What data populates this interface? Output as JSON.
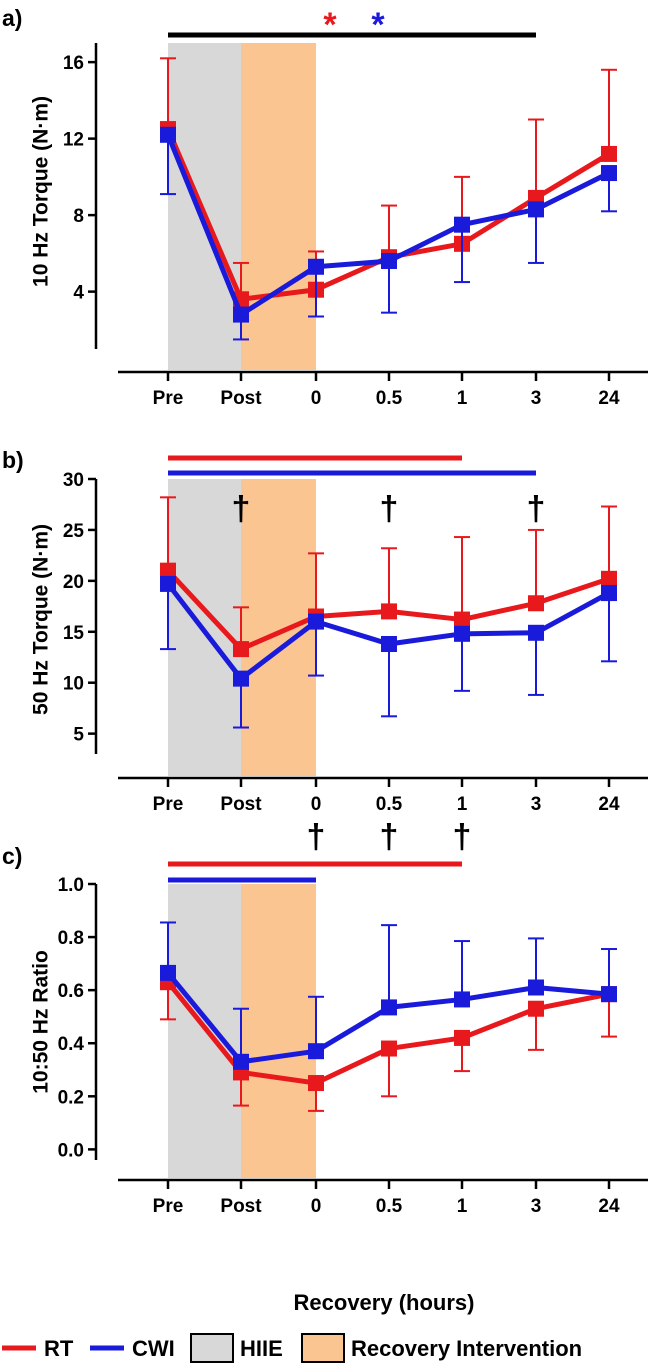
{
  "colors": {
    "rt": "#e8191c",
    "cwi": "#1a1adb",
    "hiie_shade": "#d8d8d8",
    "recovery_shade": "#fbc591",
    "black": "#000000"
  },
  "x_axis": {
    "categories": [
      "Pre",
      "Post",
      "0",
      "0.5",
      "1",
      "3",
      "24"
    ],
    "xlabel": "Recovery (hours)"
  },
  "legend": {
    "rt": "RT",
    "cwi": "CWI",
    "hiie": "HIIE",
    "recovery": "Recovery Intervention"
  },
  "chart_data": [
    {
      "panel": "a)",
      "type": "line",
      "ylabel": "10 Hz Torque (N·m)",
      "ylim": [
        1,
        17
      ],
      "yticks": [
        4,
        8,
        12,
        16
      ],
      "ytick_labels": [
        "4",
        "8",
        "12",
        "16"
      ],
      "shaded_regions": [
        {
          "name": "HIIE",
          "from": "Pre",
          "to": "Post"
        },
        {
          "name": "Recovery Intervention",
          "from": "Post",
          "to": "0"
        }
      ],
      "significance_bars": [
        {
          "color": "black",
          "from": "Pre",
          "to": "3"
        }
      ],
      "asterisks": [
        {
          "text": "*",
          "series": "RT"
        },
        {
          "text": "*",
          "series": "CWI"
        }
      ],
      "daggers": [],
      "series": [
        {
          "name": "RT",
          "values": [
            12.5,
            3.6,
            4.1,
            5.8,
            6.5,
            8.9,
            11.2
          ],
          "err_up": [
            3.7,
            1.9,
            2.0,
            2.7,
            3.5,
            4.1,
            4.4
          ]
        },
        {
          "name": "CWI",
          "values": [
            12.2,
            2.8,
            5.3,
            5.6,
            7.5,
            8.3,
            10.2
          ],
          "err_down": [
            3.1,
            1.3,
            2.6,
            2.7,
            3.0,
            2.8,
            2.0
          ]
        }
      ]
    },
    {
      "panel": "b)",
      "type": "line",
      "ylabel": "50 Hz Torque (N·m)",
      "ylim": [
        3,
        30
      ],
      "yticks": [
        5,
        10,
        15,
        20,
        25,
        30
      ],
      "ytick_labels": [
        "5",
        "10",
        "15",
        "20",
        "25",
        "30"
      ],
      "shaded_regions": [
        {
          "name": "HIIE",
          "from": "Pre",
          "to": "Post"
        },
        {
          "name": "Recovery Intervention",
          "from": "Post",
          "to": "0"
        }
      ],
      "significance_bars": [
        {
          "color": "RT",
          "from": "Pre",
          "to": "1"
        },
        {
          "color": "CWI",
          "from": "Pre",
          "to": "3"
        }
      ],
      "asterisks": [],
      "daggers": [
        {
          "text": "†",
          "at": "Post"
        },
        {
          "text": "†",
          "at": "0.5"
        },
        {
          "text": "†",
          "at": "3"
        }
      ],
      "series": [
        {
          "name": "RT",
          "values": [
            21.0,
            13.3,
            16.5,
            17.0,
            16.2,
            17.8,
            20.2
          ],
          "err_up": [
            7.2,
            4.1,
            6.2,
            6.2,
            8.1,
            7.2,
            7.1
          ]
        },
        {
          "name": "CWI",
          "values": [
            19.7,
            10.4,
            16.0,
            13.8,
            14.8,
            14.9,
            18.8
          ],
          "err_down": [
            6.4,
            4.8,
            5.3,
            7.1,
            5.6,
            6.1,
            6.7
          ]
        }
      ]
    },
    {
      "panel": "c)",
      "type": "line",
      "ylabel": "10:50 Hz Ratio",
      "ylim": [
        -0.04,
        1.0
      ],
      "yticks": [
        0.0,
        0.2,
        0.4,
        0.6,
        0.8,
        1.0
      ],
      "ytick_labels": [
        "0.0",
        "0.2",
        "0.4",
        "0.6",
        "0.8",
        "1.0"
      ],
      "shaded_regions": [
        {
          "name": "HIIE",
          "from": "Pre",
          "to": "Post"
        },
        {
          "name": "Recovery Intervention",
          "from": "Post",
          "to": "0"
        }
      ],
      "significance_bars": [
        {
          "color": "RT",
          "from": "Pre",
          "to": "1"
        },
        {
          "color": "CWI",
          "from": "Pre",
          "to": "0"
        }
      ],
      "asterisks": [],
      "daggers": [
        {
          "text": "†",
          "at": "0"
        },
        {
          "text": "†",
          "at": "0.5"
        },
        {
          "text": "†",
          "at": "1"
        }
      ],
      "series": [
        {
          "name": "RT",
          "values": [
            0.63,
            0.29,
            0.25,
            0.38,
            0.42,
            0.53,
            0.585
          ],
          "err_down": [
            0.14,
            0.125,
            0.105,
            0.18,
            0.125,
            0.155,
            0.16
          ]
        },
        {
          "name": "CWI",
          "values": [
            0.665,
            0.33,
            0.37,
            0.535,
            0.565,
            0.61,
            0.585
          ],
          "err_up": [
            0.19,
            0.2,
            0.205,
            0.31,
            0.22,
            0.185,
            0.17
          ]
        }
      ]
    }
  ]
}
